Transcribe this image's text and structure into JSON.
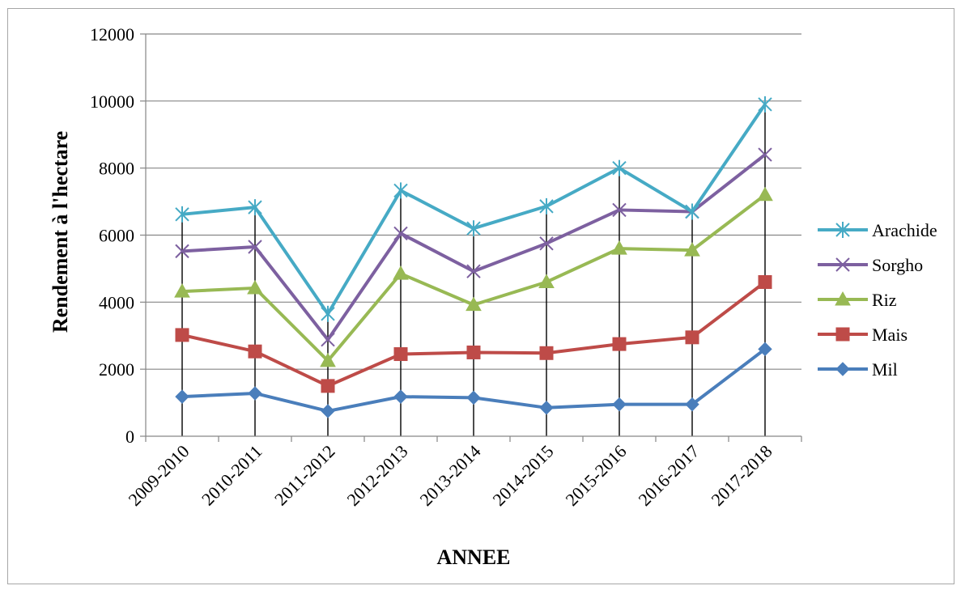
{
  "chart_data": {
    "type": "line",
    "title": "",
    "xlabel": "ANNEE",
    "ylabel": "Rendement à l'hectare",
    "ylim": [
      0,
      12000
    ],
    "yticks": [
      0,
      2000,
      4000,
      6000,
      8000,
      10000,
      12000
    ],
    "grid": "horizontal",
    "drop_lines": true,
    "legend_position": "right",
    "categories": [
      "2009-2010",
      "2010-2011",
      "2011-2012",
      "2012-2013",
      "2013-2014",
      "2014-2015",
      "2015-2016",
      "2016-2017",
      "2017-2018"
    ],
    "series": [
      {
        "name": "Mil",
        "color": "#4a7ebb",
        "marker": "diamond",
        "values": [
          1180,
          1280,
          750,
          1180,
          1150,
          850,
          950,
          950,
          2600
        ]
      },
      {
        "name": "Mais",
        "color": "#be4b48",
        "marker": "square",
        "values": [
          3020,
          2530,
          1500,
          2450,
          2500,
          2480,
          2750,
          2950,
          4600
        ]
      },
      {
        "name": "Riz",
        "color": "#98b954",
        "marker": "triangle",
        "values": [
          4320,
          4420,
          2250,
          4850,
          3920,
          4600,
          5600,
          5550,
          7200
        ]
      },
      {
        "name": "Sorgho",
        "color": "#7d60a0",
        "marker": "x",
        "values": [
          5520,
          5650,
          2880,
          6050,
          4920,
          5750,
          6750,
          6700,
          8400
        ]
      },
      {
        "name": "Arachide",
        "color": "#46aac5",
        "marker": "star",
        "values": [
          6620,
          6830,
          3650,
          7330,
          6200,
          6860,
          8000,
          6700,
          9900
        ]
      }
    ]
  }
}
